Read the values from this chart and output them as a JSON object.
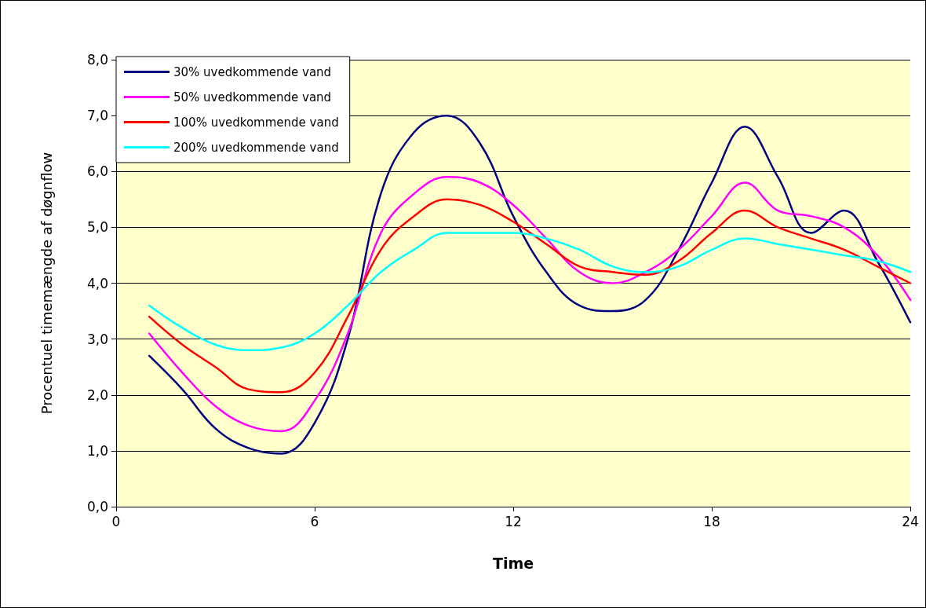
{
  "chart_data": {
    "type": "line",
    "xlabel": "Time",
    "ylabel": "Procentuel timemængde af døgnflow",
    "x": [
      1,
      2,
      3,
      4,
      5,
      6,
      7,
      8,
      9,
      10,
      11,
      12,
      13,
      14,
      15,
      16,
      17,
      18,
      19,
      20,
      21,
      22,
      23,
      24
    ],
    "series": [
      {
        "name": "30% uvedkommende vand",
        "color": "#000080",
        "values": [
          2.7,
          2.1,
          1.4,
          1.05,
          0.95,
          1.5,
          3.0,
          5.6,
          6.7,
          7.0,
          6.5,
          5.2,
          4.2,
          3.6,
          3.5,
          3.7,
          4.6,
          5.8,
          6.8,
          5.9,
          4.9,
          5.3,
          4.4,
          3.3
        ]
      },
      {
        "name": "50% uvedkommende vand",
        "color": "#ff00ff",
        "values": [
          3.1,
          2.4,
          1.8,
          1.45,
          1.35,
          1.9,
          3.1,
          4.9,
          5.6,
          5.9,
          5.8,
          5.4,
          4.8,
          4.2,
          4.0,
          4.2,
          4.6,
          5.2,
          5.8,
          5.3,
          5.2,
          5.0,
          4.5,
          3.7
        ]
      },
      {
        "name": "100% uvedkommende vand",
        "color": "#ff0000",
        "values": [
          3.4,
          2.9,
          2.5,
          2.1,
          2.05,
          2.4,
          3.4,
          4.6,
          5.2,
          5.5,
          5.4,
          5.1,
          4.7,
          4.3,
          4.2,
          4.15,
          4.4,
          4.9,
          5.3,
          5.0,
          4.8,
          4.6,
          4.3,
          4.0
        ]
      },
      {
        "name": "200% uvedkommende vand",
        "color": "#00ffff",
        "values": [
          3.6,
          3.2,
          2.9,
          2.8,
          2.85,
          3.1,
          3.6,
          4.2,
          4.6,
          4.9,
          4.9,
          4.9,
          4.8,
          4.6,
          4.3,
          4.2,
          4.3,
          4.6,
          4.8,
          4.7,
          4.6,
          4.5,
          4.4,
          4.2
        ]
      }
    ],
    "xlim": [
      0,
      24
    ],
    "xticks": [
      0,
      6,
      12,
      18,
      24
    ],
    "ylim": [
      0,
      8
    ],
    "yticks": [
      {
        "value": 0,
        "label": "0,0"
      },
      {
        "value": 1,
        "label": "1,0"
      },
      {
        "value": 2,
        "label": "2,0"
      },
      {
        "value": 3,
        "label": "3,0"
      },
      {
        "value": 4,
        "label": "4,0"
      },
      {
        "value": 5,
        "label": "5,0"
      },
      {
        "value": 6,
        "label": "6,0"
      },
      {
        "value": 7,
        "label": "7,0"
      },
      {
        "value": 8,
        "label": "8,0"
      }
    ],
    "grid": "y",
    "legend": "top left",
    "marker": "none",
    "line_style": "solid"
  }
}
